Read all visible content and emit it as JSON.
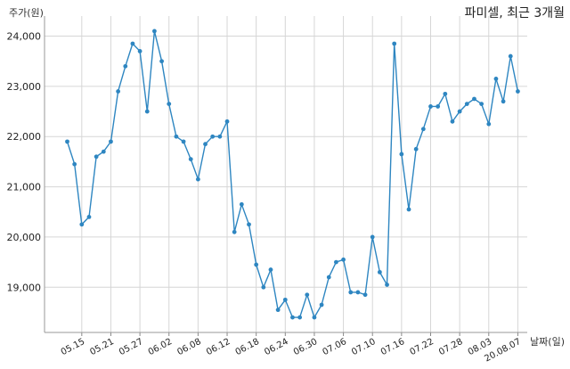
{
  "chart_data": {
    "type": "line",
    "title": "파미셀, 최근 3개월",
    "ylabel": "주가(원)",
    "xlabel": "날짜(일)",
    "ylim": [
      18100,
      24400
    ],
    "grid": true,
    "color": "#2e86c1",
    "y_ticks": [
      19000,
      20000,
      21000,
      22000,
      23000,
      24000
    ],
    "y_tick_labels": [
      "19,000",
      "20,000",
      "21,000",
      "22,000",
      "23,000",
      "24,000"
    ],
    "x_tick_labels": [
      "05.15",
      "05.21",
      "05.27",
      "06.02",
      "06.08",
      "06.12",
      "06.18",
      "06.24",
      "06.30",
      "07.06",
      "07.10",
      "07.16",
      "07.22",
      "07.28",
      "08.03",
      "20.08.07"
    ],
    "x_tick_positions": [
      2,
      6,
      10,
      14,
      18,
      22,
      26,
      30,
      34,
      38,
      42,
      46,
      50,
      54,
      58,
      62
    ],
    "series": [
      {
        "values": [
          21900,
          21450,
          20250,
          20400,
          21600,
          21700,
          21900,
          22900,
          23400,
          23850,
          23700,
          22500,
          24100,
          23500,
          22650,
          22000,
          21900,
          21550,
          21150,
          21850,
          22000,
          22000,
          22300,
          20100,
          20650,
          20250,
          19450,
          19000,
          19350,
          18550,
          18750,
          18400,
          18400,
          18850,
          18400,
          18650,
          19200,
          19500,
          19550,
          18900,
          18900,
          18850,
          20000,
          19300,
          19050,
          23850,
          21650,
          20550,
          21750,
          22150,
          22600,
          22600,
          22850,
          22300,
          22500,
          22650,
          22750,
          22650,
          22250,
          23150,
          22700,
          23600,
          22900
        ]
      }
    ]
  }
}
